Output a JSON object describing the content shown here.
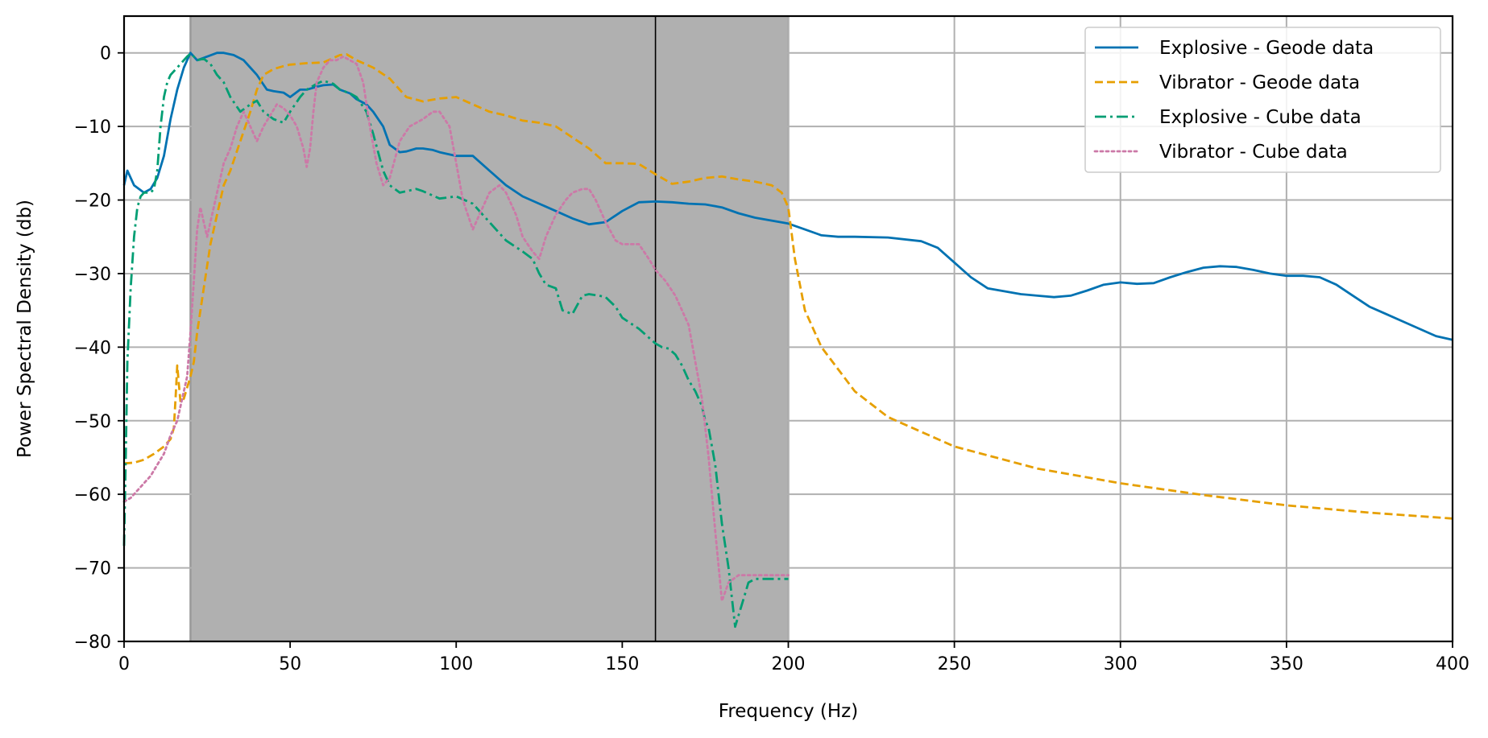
{
  "chart_data": {
    "type": "line",
    "xlabel": "Frequency (Hz)",
    "ylabel": "Power Spectral Density (db)",
    "xlim": [
      0,
      400
    ],
    "ylim": [
      -80,
      5
    ],
    "xticks": [
      0,
      50,
      100,
      150,
      200,
      250,
      300,
      350,
      400
    ],
    "yticks": [
      0,
      -10,
      -20,
      -30,
      -40,
      -50,
      -60,
      -70,
      -80
    ],
    "grid": true,
    "legend_position": "top-right",
    "shaded_band": {
      "x_start": 20,
      "x_end": 200,
      "color": "#b0b0b0"
    },
    "vertical_line": {
      "x": 160,
      "color": "#000000"
    },
    "series": [
      {
        "name": "Explosive - Geode data",
        "color": "#0072b2",
        "dash": "solid",
        "x": [
          0,
          1,
          3,
          6,
          8,
          10,
          12,
          14,
          16,
          18,
          20,
          22,
          25,
          28,
          30,
          33,
          36,
          38,
          40,
          43,
          45,
          48,
          50,
          53,
          55,
          58,
          60,
          63,
          65,
          68,
          70,
          73,
          75,
          78,
          80,
          83,
          85,
          88,
          90,
          93,
          95,
          100,
          105,
          110,
          115,
          120,
          125,
          130,
          135,
          140,
          145,
          150,
          155,
          160,
          165,
          170,
          175,
          180,
          185,
          190,
          195,
          200,
          205,
          210,
          215,
          220,
          230,
          240,
          245,
          250,
          255,
          260,
          270,
          275,
          280,
          285,
          290,
          295,
          300,
          305,
          310,
          315,
          320,
          325,
          330,
          335,
          340,
          345,
          350,
          355,
          360,
          365,
          370,
          375,
          380,
          385,
          390,
          395,
          400
        ],
        "y": [
          -18,
          -16,
          -18,
          -19,
          -18.5,
          -17,
          -14,
          -9,
          -5,
          -2,
          0,
          -1,
          -0.5,
          0,
          0,
          -0.3,
          -1,
          -2,
          -3,
          -5,
          -5.2,
          -5.4,
          -6,
          -5,
          -5,
          -4.6,
          -4.4,
          -4.3,
          -5,
          -5.5,
          -6.3,
          -7,
          -8,
          -10,
          -12.5,
          -13.5,
          -13.4,
          -13,
          -13,
          -13.2,
          -13.5,
          -14,
          -14,
          -16,
          -18,
          -19.5,
          -20.5,
          -21.5,
          -22.5,
          -23.3,
          -23,
          -21.5,
          -20.3,
          -20.2,
          -20.3,
          -20.5,
          -20.6,
          -21,
          -21.8,
          -22.4,
          -22.8,
          -23.2,
          -24,
          -24.8,
          -25,
          -25,
          -25.1,
          -25.6,
          -26.5,
          -28.5,
          -30.5,
          -32,
          -32.8,
          -33,
          -33.2,
          -33,
          -32.3,
          -31.5,
          -31.2,
          -31.4,
          -31.3,
          -30.5,
          -29.8,
          -29.2,
          -29,
          -29.1,
          -29.5,
          -30,
          -30.3,
          -30.3,
          -30.5,
          -31.5,
          -33,
          -34.5,
          -35.5,
          -36.5,
          -37.5,
          -38.5,
          -39
        ]
      },
      {
        "name": "Vibrator - Geode data",
        "color": "#e69f00",
        "dash": "dashed",
        "x": [
          0,
          3,
          6,
          9,
          12,
          14,
          15,
          15.5,
          16,
          16.5,
          17,
          18,
          19,
          20,
          21,
          22,
          24,
          26,
          28,
          30,
          32,
          35,
          38,
          40,
          42,
          45,
          48,
          50,
          55,
          60,
          63,
          65,
          67,
          70,
          75,
          80,
          85,
          90,
          95,
          100,
          105,
          110,
          115,
          120,
          125,
          130,
          135,
          140,
          145,
          150,
          155,
          160,
          165,
          170,
          175,
          180,
          185,
          190,
          195,
          198,
          200,
          202,
          205,
          210,
          220,
          230,
          250,
          275,
          300,
          325,
          350,
          375,
          400
        ],
        "y": [
          -55.8,
          -55.7,
          -55.3,
          -54.5,
          -53.5,
          -52.5,
          -51,
          -47,
          -42.5,
          -45,
          -47.5,
          -47,
          -45.5,
          -44,
          -42,
          -38,
          -32,
          -26,
          -22,
          -18,
          -16,
          -12,
          -8,
          -5,
          -3,
          -2.2,
          -1.8,
          -1.6,
          -1.4,
          -1.3,
          -0.7,
          -0.3,
          -0.2,
          -1,
          -2,
          -3.5,
          -6,
          -6.6,
          -6.2,
          -6,
          -7,
          -8,
          -8.5,
          -9.2,
          -9.5,
          -10,
          -11.5,
          -13,
          -15,
          -15,
          -15.1,
          -16.5,
          -17.8,
          -17.5,
          -17,
          -16.8,
          -17.2,
          -17.5,
          -18,
          -19,
          -21,
          -28,
          -35,
          -40,
          -46,
          -49.5,
          -53.5,
          -56.5,
          -58.5,
          -60.1,
          -61.5,
          -62.5,
          -63.3
        ]
      },
      {
        "name": "Explosive - Cube data",
        "color": "#009e73",
        "dash": "dashdot",
        "x": [
          0,
          0.5,
          1,
          2,
          3,
          4,
          5,
          6,
          7,
          8,
          9,
          10,
          11,
          12,
          13,
          14,
          15,
          16,
          17,
          18,
          19,
          20,
          21,
          22,
          24,
          26,
          28,
          30,
          32,
          35,
          38,
          40,
          42,
          45,
          48,
          50,
          53,
          55,
          58,
          60,
          63,
          65,
          68,
          70,
          73,
          75,
          78,
          80,
          83,
          85,
          88,
          90,
          95,
          100,
          105,
          110,
          115,
          120,
          123,
          125,
          127,
          130,
          132,
          135,
          138,
          140,
          143,
          145,
          148,
          150,
          155,
          160,
          162,
          164,
          166,
          168,
          170,
          172,
          174,
          175,
          176,
          178,
          180,
          182,
          183,
          184,
          186,
          188,
          190,
          195,
          200
        ],
        "y": [
          -67,
          -55,
          -42,
          -32,
          -25,
          -21,
          -19.5,
          -19,
          -19,
          -19,
          -18.5,
          -16,
          -10,
          -6,
          -4,
          -3,
          -2.5,
          -2,
          -1.5,
          -1,
          -0.5,
          -0.1,
          -0.5,
          -1,
          -0.8,
          -1.5,
          -3,
          -4,
          -6,
          -8,
          -7,
          -6.5,
          -8,
          -9,
          -9.5,
          -8,
          -6,
          -5,
          -4.2,
          -3.8,
          -4.2,
          -5,
          -5.5,
          -6,
          -8,
          -11,
          -16,
          -18,
          -19,
          -18.8,
          -18.5,
          -18.8,
          -19.8,
          -19.5,
          -20.5,
          -23,
          -25.5,
          -27,
          -28,
          -30,
          -31.5,
          -32,
          -35,
          -35.5,
          -33,
          -32.8,
          -33,
          -33.2,
          -34.5,
          -36,
          -37.5,
          -39.5,
          -40,
          -40.2,
          -41,
          -42.5,
          -44.5,
          -46,
          -48,
          -50,
          -51,
          -56,
          -64,
          -70,
          -74,
          -78,
          -75,
          -72,
          -71.5,
          -71.5,
          -71.5
        ]
      },
      {
        "name": "Vibrator - Cube data",
        "color": "#cc79a7",
        "dash": "dotted",
        "x": [
          0,
          2,
          5,
          8,
          10,
          12,
          14,
          16,
          17,
          18,
          19,
          20,
          21,
          22,
          23,
          24,
          25,
          26,
          27,
          28,
          30,
          32,
          34,
          36,
          38,
          40,
          42,
          44,
          46,
          48,
          50,
          52,
          54,
          55,
          56,
          57,
          58,
          60,
          62,
          64,
          66,
          68,
          70,
          72,
          74,
          76,
          78,
          80,
          83,
          86,
          90,
          93,
          95,
          98,
          100,
          102,
          105,
          107,
          110,
          113,
          115,
          118,
          120,
          123,
          125,
          127,
          130,
          133,
          135,
          138,
          140,
          142,
          145,
          148,
          150,
          153,
          155,
          158,
          160,
          163,
          166,
          170,
          172,
          174,
          176,
          178,
          180,
          182,
          185,
          190,
          195,
          200
        ],
        "y": [
          -61,
          -60.5,
          -59,
          -57.5,
          -56,
          -54.5,
          -52,
          -50,
          -48,
          -46,
          -44,
          -38,
          -31,
          -24,
          -21,
          -23,
          -25,
          -23,
          -21,
          -19,
          -15,
          -13,
          -10,
          -8,
          -10,
          -12,
          -10,
          -8.5,
          -7,
          -7.5,
          -8.5,
          -10,
          -13,
          -15.5,
          -13,
          -8,
          -4,
          -2,
          -1,
          -1,
          -0.5,
          -1,
          -1.5,
          -4,
          -10,
          -15,
          -18,
          -17,
          -12,
          -10,
          -9,
          -8,
          -8,
          -10,
          -15,
          -20,
          -24,
          -22,
          -19,
          -18,
          -19,
          -22,
          -25,
          -27,
          -28,
          -25,
          -22,
          -20,
          -19,
          -18.5,
          -18.5,
          -20,
          -23,
          -25.5,
          -26,
          -26,
          -26,
          -28,
          -29.5,
          -31,
          -33,
          -37,
          -42,
          -47,
          -55,
          -65,
          -74.5,
          -72,
          -71,
          -71,
          -71,
          -71
        ]
      }
    ]
  }
}
